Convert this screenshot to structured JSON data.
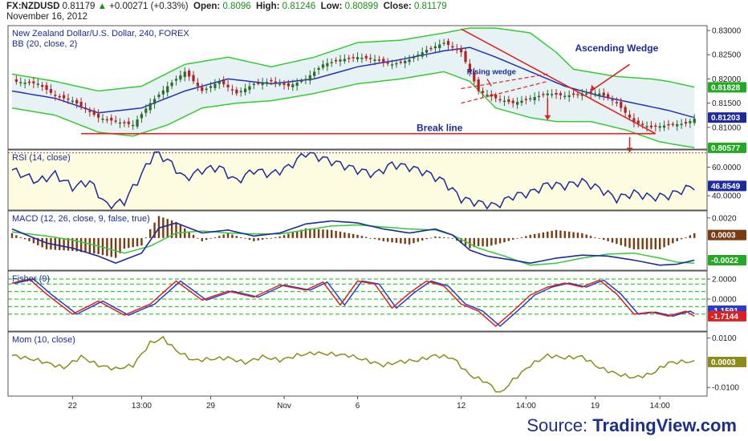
{
  "header": {
    "symbol": "FX:NZDUSD",
    "last": "0.81179",
    "arrow": "▲",
    "change": "+0.00271 (+0.33%)",
    "open_label": "Open:",
    "open": "0.8096",
    "high_label": "High:",
    "high": "0.81246",
    "low_label": "Low:",
    "low": "0.80899",
    "close_label": "Close:",
    "close": "0.81179",
    "date": "November 16, 2012"
  },
  "source": {
    "prefix": "Source:",
    "brand": "TradingView.com"
  },
  "colors": {
    "bull": "#2a6a2a",
    "bear": "#b22222",
    "bbband": "#33cc33",
    "bbmid": "#2233bb",
    "rsi": "#1c2a9e",
    "macd": "#1c2a9e",
    "signal": "#33cc33",
    "hist": "#7a3b10",
    "fisher": "#e02020",
    "fisher_trigger": "#2b3bd0",
    "mom": "#8c8c1a",
    "trend": "#e02222",
    "label": "#1a2c9a"
  },
  "chart_data": [
    {
      "type": "candlestick",
      "title": "New Zealand Dollar/U.S. Dollar, 240, FOREX",
      "subtitle": "BB (20, close, 2)",
      "ylim": [
        0.8055,
        0.831
      ],
      "y_ticks": [
        "0.83000",
        "0.82500",
        "0.82000",
        "0.81500",
        "0.81000"
      ],
      "tick_values": [
        0.83,
        0.825,
        0.82,
        0.815,
        0.81
      ],
      "badges": [
        {
          "text": "0.81828",
          "value": 0.81828,
          "color": "#22aa22"
        },
        {
          "text": "0.81203",
          "value": 0.81203,
          "color": "#1c2a9e"
        },
        {
          "text": "0.80577",
          "value": 0.80577,
          "color": "#22aa22"
        }
      ],
      "close_anchors": [
        [
          0,
          0.8195
        ],
        [
          6,
          0.819
        ],
        [
          10,
          0.8165
        ],
        [
          14,
          0.8155
        ],
        [
          20,
          0.812
        ],
        [
          25,
          0.811
        ],
        [
          28,
          0.8105
        ],
        [
          32,
          0.815
        ],
        [
          36,
          0.8185
        ],
        [
          40,
          0.8215
        ],
        [
          44,
          0.8175
        ],
        [
          48,
          0.8195
        ],
        [
          52,
          0.817
        ],
        [
          56,
          0.819
        ],
        [
          60,
          0.8195
        ],
        [
          64,
          0.8185
        ],
        [
          68,
          0.82
        ],
        [
          72,
          0.823
        ],
        [
          76,
          0.824
        ],
        [
          80,
          0.8245
        ],
        [
          84,
          0.824
        ],
        [
          88,
          0.823
        ],
        [
          92,
          0.824
        ],
        [
          96,
          0.826
        ],
        [
          100,
          0.8275
        ],
        [
          104,
          0.8255
        ],
        [
          106,
          0.8215
        ],
        [
          108,
          0.8175
        ],
        [
          112,
          0.816
        ],
        [
          116,
          0.815
        ],
        [
          120,
          0.816
        ],
        [
          124,
          0.817
        ],
        [
          128,
          0.8165
        ],
        [
          132,
          0.817
        ],
        [
          136,
          0.817
        ],
        [
          140,
          0.815
        ],
        [
          144,
          0.811
        ],
        [
          148,
          0.81
        ],
        [
          152,
          0.8105
        ],
        [
          156,
          0.8108
        ],
        [
          158,
          0.8118
        ]
      ],
      "bb_upper": [
        [
          0,
          0.821
        ],
        [
          10,
          0.8195
        ],
        [
          20,
          0.8175
        ],
        [
          30,
          0.8185
        ],
        [
          40,
          0.823
        ],
        [
          50,
          0.8245
        ],
        [
          60,
          0.8225
        ],
        [
          70,
          0.8245
        ],
        [
          80,
          0.8275
        ],
        [
          90,
          0.828
        ],
        [
          100,
          0.8295
        ],
        [
          106,
          0.8305
        ],
        [
          112,
          0.8305
        ],
        [
          120,
          0.8295
        ],
        [
          126,
          0.8255
        ],
        [
          130,
          0.822
        ],
        [
          140,
          0.8205
        ],
        [
          148,
          0.82
        ],
        [
          152,
          0.8195
        ],
        [
          158,
          0.8183
        ]
      ],
      "bb_middle": [
        [
          0,
          0.8175
        ],
        [
          10,
          0.816
        ],
        [
          20,
          0.813
        ],
        [
          30,
          0.814
        ],
        [
          40,
          0.8175
        ],
        [
          50,
          0.82
        ],
        [
          60,
          0.819
        ],
        [
          70,
          0.82
        ],
        [
          80,
          0.8225
        ],
        [
          90,
          0.824
        ],
        [
          100,
          0.8258
        ],
        [
          106,
          0.8265
        ],
        [
          112,
          0.8245
        ],
        [
          120,
          0.8215
        ],
        [
          128,
          0.8185
        ],
        [
          136,
          0.8165
        ],
        [
          144,
          0.815
        ],
        [
          152,
          0.8135
        ],
        [
          158,
          0.812
        ]
      ],
      "bb_lower": [
        [
          0,
          0.814
        ],
        [
          10,
          0.8125
        ],
        [
          20,
          0.809
        ],
        [
          28,
          0.8082
        ],
        [
          36,
          0.8105
        ],
        [
          44,
          0.814
        ],
        [
          52,
          0.815
        ],
        [
          60,
          0.8155
        ],
        [
          70,
          0.817
        ],
        [
          80,
          0.819
        ],
        [
          90,
          0.82
        ],
        [
          100,
          0.8215
        ],
        [
          106,
          0.8195
        ],
        [
          112,
          0.814
        ],
        [
          120,
          0.812
        ],
        [
          126,
          0.8112
        ],
        [
          134,
          0.8112
        ],
        [
          142,
          0.8095
        ],
        [
          150,
          0.807
        ],
        [
          158,
          0.8058
        ]
      ],
      "annotations": [
        {
          "text": "Ascending Wedge",
          "at": [
            140,
            0.8257
          ]
        },
        {
          "text": "Rising wedge",
          "at": [
            111,
            0.821
          ]
        },
        {
          "text": "Break line",
          "at": [
            99,
            0.8092
          ]
        }
      ]
    },
    {
      "type": "line",
      "title": "RSI (14, close)",
      "ylim": [
        30,
        72
      ],
      "y_ticks": [
        "60.0000",
        "40.0000"
      ],
      "tick_values": [
        60,
        40
      ],
      "band": [
        30,
        70
      ],
      "badge": {
        "text": "46.8549",
        "value": 46.8549,
        "color": "#1c2a9e"
      },
      "values_anchor": [
        [
          0,
          58
        ],
        [
          6,
          50
        ],
        [
          10,
          55
        ],
        [
          14,
          46
        ],
        [
          18,
          50
        ],
        [
          22,
          33
        ],
        [
          26,
          36
        ],
        [
          30,
          55
        ],
        [
          33,
          70
        ],
        [
          36,
          65
        ],
        [
          40,
          52
        ],
        [
          44,
          58
        ],
        [
          48,
          60
        ],
        [
          52,
          50
        ],
        [
          56,
          58
        ],
        [
          60,
          55
        ],
        [
          64,
          60
        ],
        [
          68,
          70
        ],
        [
          72,
          66
        ],
        [
          76,
          62
        ],
        [
          80,
          58
        ],
        [
          84,
          55
        ],
        [
          88,
          62
        ],
        [
          92,
          60
        ],
        [
          96,
          56
        ],
        [
          100,
          50
        ],
        [
          104,
          38
        ],
        [
          108,
          35
        ],
        [
          112,
          33
        ],
        [
          116,
          40
        ],
        [
          120,
          42
        ],
        [
          124,
          48
        ],
        [
          128,
          47
        ],
        [
          132,
          50
        ],
        [
          136,
          45
        ],
        [
          140,
          38
        ],
        [
          144,
          42
        ],
        [
          148,
          39
        ],
        [
          152,
          40
        ],
        [
          156,
          45
        ],
        [
          158,
          46.85
        ]
      ]
    },
    {
      "type": "bar+line",
      "title": "MACD (12, 26, close, 9, false, true)",
      "ylim": [
        -0.0032,
        0.0027
      ],
      "y_ticks": [
        "0.0020"
      ],
      "tick_values": [
        0.002
      ],
      "badges": [
        {
          "text": "0.0003",
          "value": 0.0003,
          "color": "#7a3b10"
        },
        {
          "text": "-0.0022",
          "value": -0.0022,
          "color": "#22aa22"
        }
      ],
      "macd_anchor": [
        [
          0,
          0.0009
        ],
        [
          8,
          -0.0005
        ],
        [
          14,
          -0.001
        ],
        [
          20,
          -0.0018
        ],
        [
          24,
          -0.0025
        ],
        [
          30,
          -0.0015
        ],
        [
          34,
          0.001
        ],
        [
          38,
          0.0015
        ],
        [
          44,
          0.0005
        ],
        [
          50,
          0.0008
        ],
        [
          56,
          0.0002
        ],
        [
          62,
          0.0005
        ],
        [
          68,
          0.0014
        ],
        [
          74,
          0.0017
        ],
        [
          80,
          0.0015
        ],
        [
          86,
          0.0009
        ],
        [
          92,
          0.0005
        ],
        [
          98,
          0.0009
        ],
        [
          102,
          0.0003
        ],
        [
          106,
          -0.0012
        ],
        [
          110,
          -0.0018
        ],
        [
          116,
          -0.0022
        ],
        [
          120,
          -0.0025
        ],
        [
          126,
          -0.002
        ],
        [
          132,
          -0.0017
        ],
        [
          138,
          -0.0018
        ],
        [
          144,
          -0.0022
        ],
        [
          150,
          -0.0027
        ],
        [
          154,
          -0.0026
        ],
        [
          158,
          -0.0022
        ]
      ],
      "signal_anchor": [
        [
          0,
          0.0006
        ],
        [
          8,
          0.0002
        ],
        [
          14,
          -0.0002
        ],
        [
          20,
          -0.0008
        ],
        [
          26,
          -0.0015
        ],
        [
          32,
          -0.0008
        ],
        [
          38,
          0.0005
        ],
        [
          44,
          0.0007
        ],
        [
          50,
          0.0005
        ],
        [
          56,
          0.0004
        ],
        [
          62,
          0.0004
        ],
        [
          68,
          0.0008
        ],
        [
          74,
          0.0012
        ],
        [
          80,
          0.0013
        ],
        [
          86,
          0.0011
        ],
        [
          92,
          0.0009
        ],
        [
          98,
          0.0008
        ],
        [
          102,
          0.0003
        ],
        [
          108,
          -0.001
        ],
        [
          114,
          -0.0018
        ],
        [
          120,
          -0.0027
        ],
        [
          126,
          -0.0025
        ],
        [
          132,
          -0.002
        ],
        [
          138,
          -0.0016
        ],
        [
          144,
          -0.0015
        ],
        [
          150,
          -0.002
        ],
        [
          154,
          -0.0024
        ],
        [
          158,
          -0.0025
        ]
      ]
    },
    {
      "type": "line",
      "title": "Fisher (9)",
      "ylim": [
        -3.2,
        2.8
      ],
      "y_ticks": [
        "2.0000",
        "0.0000"
      ],
      "tick_values": [
        2.0,
        0.0
      ],
      "levels": [
        2.0,
        1.5,
        0.75,
        0.0,
        -0.75,
        -1.5
      ],
      "badges": [
        {
          "text": "-1.1591",
          "value": -1.1591,
          "color": "#2b3bd0"
        },
        {
          "text": "-1.7144",
          "value": -1.7144,
          "color": "#e02020"
        }
      ],
      "fisher_anchor": [
        [
          0,
          1.6
        ],
        [
          4,
          2.0
        ],
        [
          8,
          0.5
        ],
        [
          14,
          -1.5
        ],
        [
          20,
          -0.2
        ],
        [
          26,
          -1.6
        ],
        [
          32,
          -0.5
        ],
        [
          38,
          1.8
        ],
        [
          44,
          -0.1
        ],
        [
          50,
          0.8
        ],
        [
          56,
          0.2
        ],
        [
          62,
          1.4
        ],
        [
          68,
          0.9
        ],
        [
          72,
          1.7
        ],
        [
          76,
          -0.6
        ],
        [
          80,
          1.8
        ],
        [
          84,
          1.5
        ],
        [
          88,
          -0.9
        ],
        [
          92,
          0.6
        ],
        [
          96,
          1.8
        ],
        [
          100,
          1.3
        ],
        [
          104,
          -0.5
        ],
        [
          108,
          -1.2
        ],
        [
          112,
          -2.7
        ],
        [
          116,
          -1.2
        ],
        [
          120,
          0.4
        ],
        [
          124,
          1.2
        ],
        [
          128,
          1.6
        ],
        [
          132,
          1.2
        ],
        [
          136,
          1.9
        ],
        [
          140,
          0.5
        ],
        [
          144,
          -1.5
        ],
        [
          148,
          -1.3
        ],
        [
          152,
          -1.7
        ],
        [
          156,
          -1.2
        ],
        [
          158,
          -1.7144
        ]
      ]
    },
    {
      "type": "line",
      "title": "Mom (10, close)",
      "ylim": [
        -0.0135,
        0.0125
      ],
      "y_ticks": [
        "0.0100",
        "-0.0100"
      ],
      "tick_values": [
        0.01,
        -0.01
      ],
      "badge": {
        "text": "0.0003",
        "value": 0.0003,
        "color": "#8c8c1a"
      },
      "values_anchor": [
        [
          0,
          0.003
        ],
        [
          6,
          0.001
        ],
        [
          12,
          -0.002
        ],
        [
          16,
          0.0025
        ],
        [
          20,
          -0.001
        ],
        [
          24,
          -0.0025
        ],
        [
          28,
          -0.001
        ],
        [
          32,
          0.008
        ],
        [
          35,
          0.01
        ],
        [
          38,
          0.005
        ],
        [
          42,
          0.001
        ],
        [
          46,
          0.0015
        ],
        [
          50,
          0.002
        ],
        [
          54,
          0.0
        ],
        [
          58,
          0.0025
        ],
        [
          62,
          0.001
        ],
        [
          66,
          0.003
        ],
        [
          70,
          0.004
        ],
        [
          74,
          0.0035
        ],
        [
          78,
          0.003
        ],
        [
          82,
          0.001
        ],
        [
          86,
          -0.001
        ],
        [
          90,
          0.0005
        ],
        [
          94,
          0.001
        ],
        [
          98,
          0.003
        ],
        [
          102,
          0.002
        ],
        [
          106,
          -0.005
        ],
        [
          110,
          -0.008
        ],
        [
          113,
          -0.0125
        ],
        [
          116,
          -0.007
        ],
        [
          120,
          -0.001
        ],
        [
          124,
          0.003
        ],
        [
          128,
          0.002
        ],
        [
          132,
          0.0025
        ],
        [
          136,
          -0.002
        ],
        [
          140,
          -0.0045
        ],
        [
          144,
          -0.006
        ],
        [
          148,
          -0.0045
        ],
        [
          152,
          0.0
        ],
        [
          156,
          0.0005
        ],
        [
          158,
          0.0003
        ]
      ]
    },
    {
      "type": "x_axis",
      "tick_labels": [
        "22",
        "13:00",
        "29",
        "Nov",
        "6",
        "12",
        "14:00",
        "19",
        "14:00"
      ],
      "tick_index": [
        14,
        30,
        46,
        63,
        80,
        104,
        119,
        135,
        150
      ]
    }
  ]
}
